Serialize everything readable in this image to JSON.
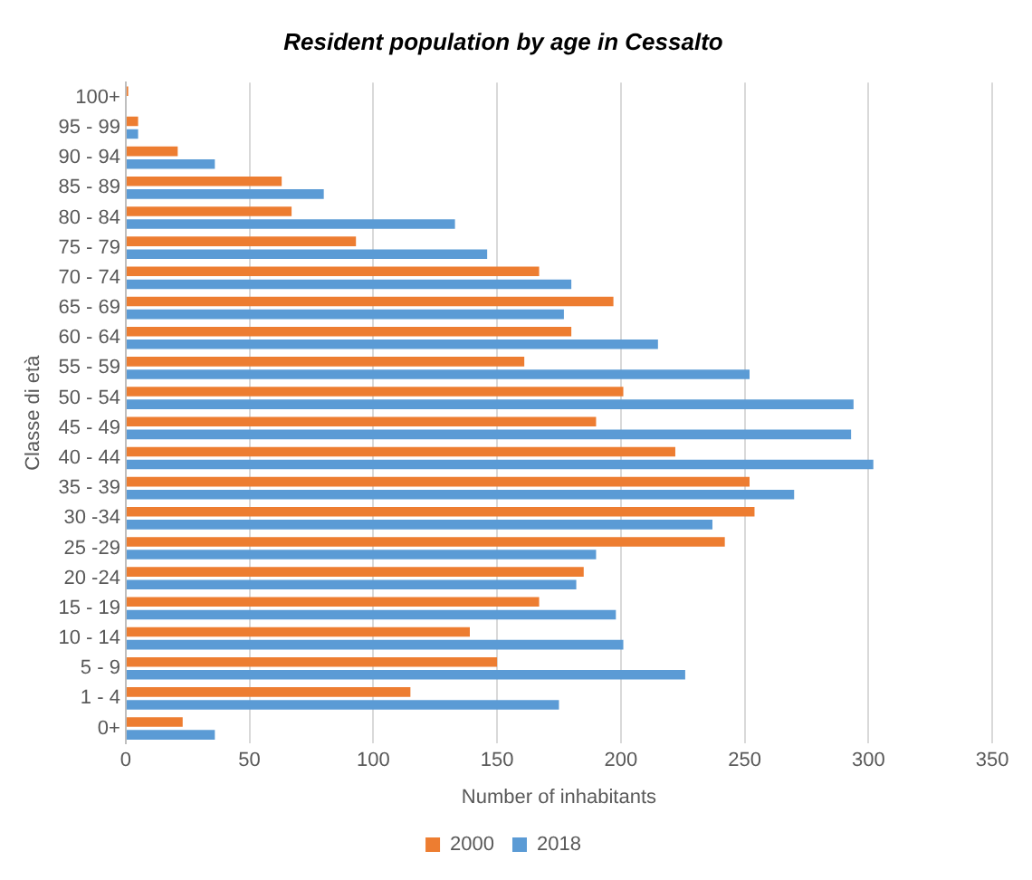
{
  "chart_data": {
    "type": "bar",
    "orientation": "horizontal",
    "title": "Resident population by age in Cessalto",
    "xlabel": "Number of inhabitants",
    "ylabel": "Classe di età",
    "categories": [
      "100+",
      "95 - 99",
      "90 - 94",
      "85 - 89",
      "80 - 84",
      "75 - 79",
      "70 - 74",
      "65 - 69",
      "60 - 64",
      "55 - 59",
      "50 - 54",
      "45 - 49",
      "40 - 44",
      "35 - 39",
      "30 -34",
      "25 -29",
      "20 -24",
      "15 - 19",
      "10 - 14",
      "5 - 9",
      "1 - 4",
      "0+"
    ],
    "series": [
      {
        "name": "2000",
        "color": "#ed7d31",
        "values": [
          1,
          5,
          21,
          63,
          67,
          93,
          167,
          197,
          180,
          161,
          201,
          190,
          222,
          252,
          254,
          242,
          185,
          167,
          139,
          150,
          115,
          23
        ]
      },
      {
        "name": "2018",
        "color": "#5b9bd5",
        "values": [
          0,
          5,
          36,
          80,
          133,
          146,
          180,
          177,
          215,
          252,
          294,
          293,
          302,
          270,
          237,
          190,
          182,
          198,
          201,
          226,
          175,
          36
        ]
      }
    ],
    "xlim": [
      0,
      350
    ],
    "xticks": [
      0,
      50,
      100,
      150,
      200,
      250,
      300,
      350
    ],
    "grid": "x",
    "legend": "bottom"
  }
}
